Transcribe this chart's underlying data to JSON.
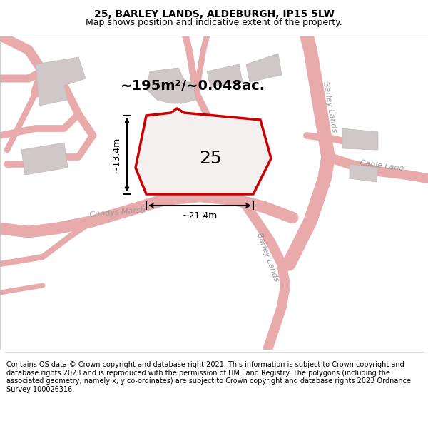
{
  "title": "25, BARLEY LANDS, ALDEBURGH, IP15 5LW",
  "subtitle": "Map shows position and indicative extent of the property.",
  "footer": "Contains OS data © Crown copyright and database right 2021. This information is subject to Crown copyright and database rights 2023 and is reproduced with the permission of HM Land Registry. The polygons (including the associated geometry, namely x, y co-ordinates) are subject to Crown copyright and database rights 2023 Ordnance Survey 100026316.",
  "background_color": "#ffffff",
  "map_bg_color": "#faf5f5",
  "title_fontsize": 10,
  "subtitle_fontsize": 9,
  "footer_fontsize": 7,
  "area_label": "~195m²/~0.048ac.",
  "number_label": "25",
  "dim_width": "~21.4m",
  "dim_height": "~13.4m",
  "street_label_barley_top": "Barley Lands",
  "street_label_barley_bot": "Barley Lands",
  "street_label_cundys": "Cundys Marsh",
  "street_label_cable": "Cable Lane",
  "road_color": "#e8aaaa",
  "road_outline": "#e0a0a0",
  "highlight_color": "#cc0000",
  "building_fill": "#d0c8c8",
  "building_edge": "#c0b8b8",
  "prop_fill": "#f5f0f0",
  "inner_building_fill": "#ddd8d8"
}
